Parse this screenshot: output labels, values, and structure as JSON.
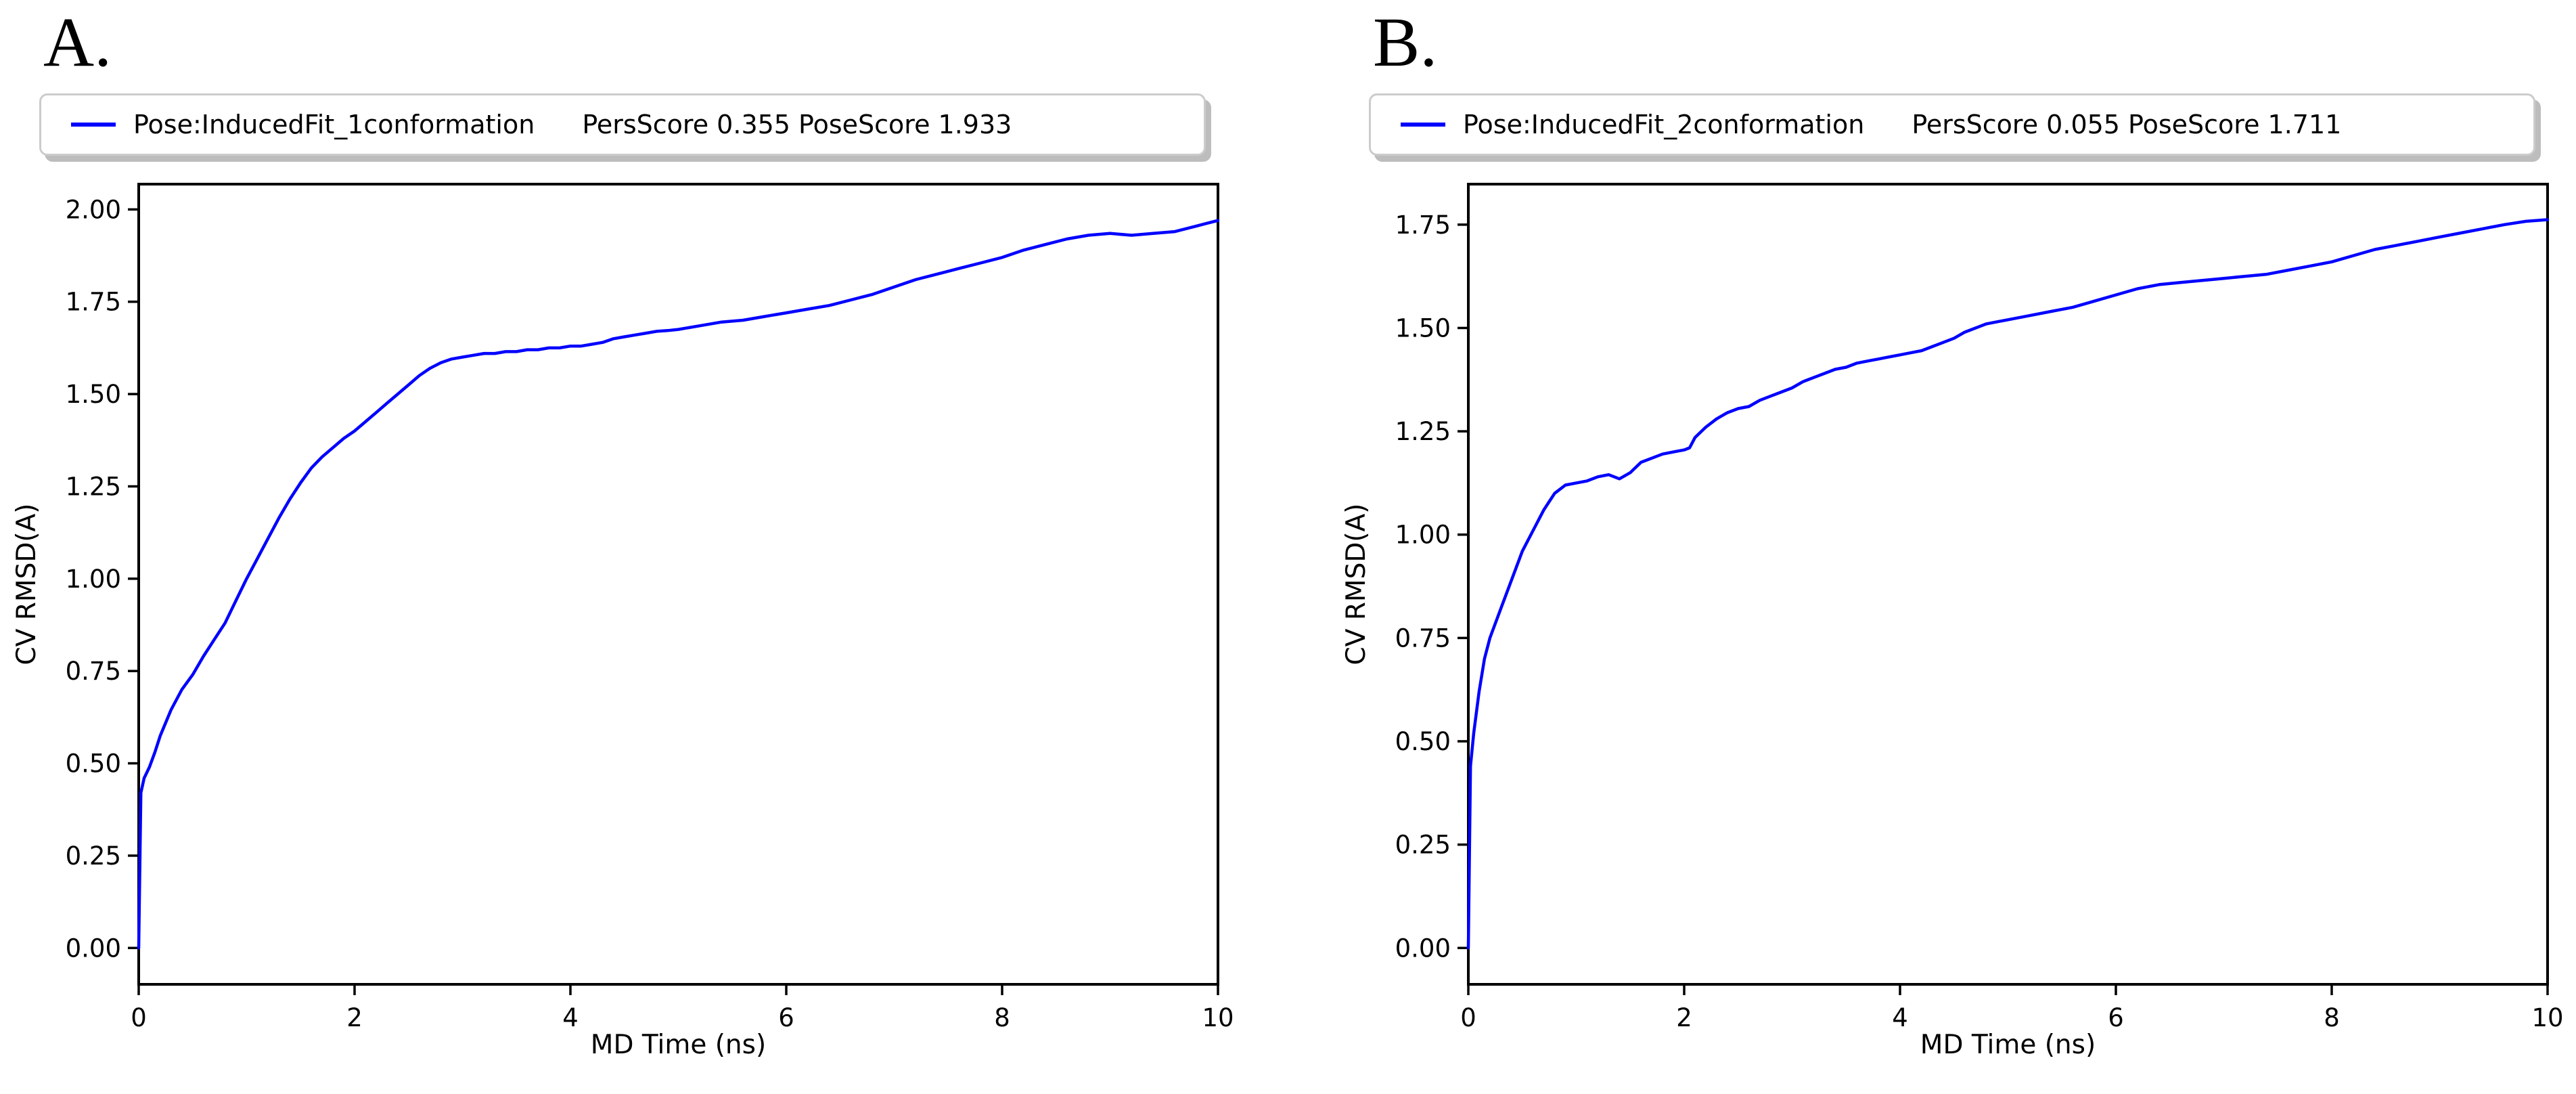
{
  "figure": {
    "background": "#ffffff"
  },
  "colors": {
    "line": "#0000ff",
    "axis": "#000000",
    "text": "#000000",
    "legend_border": "#cccccc",
    "legend_shadow": "#bdbdbd",
    "background": "#ffffff"
  },
  "panels": [
    {
      "letter": "A.",
      "legend": {
        "series_label": "Pose:InducedFit_1conformation",
        "scores_label": "PersScore 0.355 PoseScore 1.933"
      }
    },
    {
      "letter": "B.",
      "legend": {
        "series_label": "Pose:InducedFit_2conformation",
        "scores_label": "PersScore 0.055 PoseScore 1.711"
      }
    }
  ],
  "chart_data": [
    {
      "type": "line",
      "title": "A.",
      "xlabel": "MD Time (ns)",
      "ylabel": "CV RMSD(A)",
      "xlim": [
        0,
        10
      ],
      "ylim": [
        -0.0985,
        2.0685
      ],
      "xticks": [
        0,
        2,
        4,
        6,
        8,
        10
      ],
      "xtick_labels": [
        "0",
        "2",
        "4",
        "6",
        "8",
        "10"
      ],
      "yticks": [
        0.0,
        0.25,
        0.5,
        0.75,
        1.0,
        1.25,
        1.5,
        1.75,
        2.0
      ],
      "ytick_labels": [
        "0.00",
        "0.25",
        "0.50",
        "0.75",
        "1.00",
        "1.25",
        "1.50",
        "1.75",
        "2.00"
      ],
      "grid": false,
      "legend_position": "above-plot",
      "pers_score": 0.355,
      "pose_score": 1.933,
      "series": [
        {
          "name": "Pose:InducedFit_1conformation",
          "x": [
            0,
            0.02,
            0.05,
            0.1,
            0.15,
            0.2,
            0.3,
            0.4,
            0.5,
            0.6,
            0.7,
            0.8,
            0.9,
            1,
            1.1,
            1.2,
            1.3,
            1.4,
            1.5,
            1.6,
            1.7,
            1.8,
            1.9,
            2,
            2.1,
            2.2,
            2.3,
            2.4,
            2.5,
            2.6,
            2.7,
            2.8,
            2.9,
            3,
            3.1,
            3.2,
            3.3,
            3.4,
            3.5,
            3.6,
            3.7,
            3.8,
            3.9,
            4,
            4.1,
            4.2,
            4.3,
            4.4,
            4.5,
            4.6,
            4.7,
            4.8,
            4.9,
            5,
            5.2,
            5.4,
            5.6,
            5.8,
            6,
            6.2,
            6.4,
            6.6,
            6.8,
            7,
            7.2,
            7.4,
            7.6,
            7.8,
            8,
            8.2,
            8.4,
            8.6,
            8.8,
            9,
            9.2,
            9.4,
            9.6,
            9.8,
            10
          ],
          "y": [
            0,
            0.42,
            0.46,
            0.49,
            0.53,
            0.575,
            0.645,
            0.7,
            0.74,
            0.79,
            0.835,
            0.88,
            0.94,
            1.0,
            1.055,
            1.11,
            1.165,
            1.215,
            1.26,
            1.3,
            1.33,
            1.355,
            1.38,
            1.4,
            1.425,
            1.45,
            1.475,
            1.5,
            1.525,
            1.55,
            1.57,
            1.585,
            1.595,
            1.6,
            1.605,
            1.61,
            1.61,
            1.615,
            1.615,
            1.62,
            1.62,
            1.625,
            1.625,
            1.63,
            1.63,
            1.635,
            1.64,
            1.65,
            1.655,
            1.66,
            1.665,
            1.67,
            1.672,
            1.675,
            1.685,
            1.695,
            1.7,
            1.71,
            1.72,
            1.73,
            1.74,
            1.755,
            1.77,
            1.79,
            1.81,
            1.825,
            1.84,
            1.855,
            1.87,
            1.89,
            1.905,
            1.92,
            1.93,
            1.935,
            1.93,
            1.935,
            1.94,
            1.955,
            1.97
          ]
        }
      ]
    },
    {
      "type": "line",
      "title": "B.",
      "xlabel": "MD Time (ns)",
      "ylabel": "CV RMSD(A)",
      "xlim": [
        0,
        10
      ],
      "ylim": [
        -0.088,
        1.848
      ],
      "xticks": [
        0,
        2,
        4,
        6,
        8,
        10
      ],
      "xtick_labels": [
        "0",
        "2",
        "4",
        "6",
        "8",
        "10"
      ],
      "yticks": [
        0.0,
        0.25,
        0.5,
        0.75,
        1.0,
        1.25,
        1.5,
        1.75
      ],
      "ytick_labels": [
        "0.00",
        "0.25",
        "0.50",
        "0.75",
        "1.00",
        "1.25",
        "1.50",
        "1.75"
      ],
      "grid": false,
      "legend_position": "above-plot",
      "pers_score": 0.055,
      "pose_score": 1.711,
      "series": [
        {
          "name": "Pose:InducedFit_2conformation",
          "x": [
            0,
            0.02,
            0.05,
            0.1,
            0.15,
            0.2,
            0.3,
            0.4,
            0.5,
            0.6,
            0.7,
            0.8,
            0.9,
            1,
            1.1,
            1.2,
            1.3,
            1.4,
            1.5,
            1.6,
            1.7,
            1.8,
            1.9,
            2,
            2.05,
            2.1,
            2.2,
            2.3,
            2.4,
            2.5,
            2.6,
            2.7,
            2.8,
            2.9,
            3,
            3.1,
            3.2,
            3.3,
            3.4,
            3.5,
            3.6,
            3.7,
            3.8,
            3.9,
            4,
            4.1,
            4.2,
            4.3,
            4.4,
            4.5,
            4.6,
            4.7,
            4.8,
            4.9,
            5,
            5.2,
            5.4,
            5.6,
            5.8,
            6,
            6.2,
            6.4,
            6.6,
            6.8,
            7,
            7.2,
            7.4,
            7.6,
            7.8,
            8,
            8.2,
            8.4,
            8.6,
            8.8,
            9,
            9.2,
            9.4,
            9.6,
            9.8,
            10
          ],
          "y": [
            0,
            0.44,
            0.52,
            0.62,
            0.7,
            0.75,
            0.82,
            0.89,
            0.96,
            1.01,
            1.06,
            1.1,
            1.12,
            1.125,
            1.13,
            1.14,
            1.145,
            1.135,
            1.15,
            1.175,
            1.185,
            1.195,
            1.2,
            1.205,
            1.21,
            1.235,
            1.26,
            1.28,
            1.295,
            1.305,
            1.31,
            1.325,
            1.335,
            1.345,
            1.355,
            1.37,
            1.38,
            1.39,
            1.4,
            1.405,
            1.415,
            1.42,
            1.425,
            1.43,
            1.435,
            1.44,
            1.445,
            1.455,
            1.465,
            1.475,
            1.49,
            1.5,
            1.51,
            1.515,
            1.52,
            1.53,
            1.54,
            1.55,
            1.565,
            1.58,
            1.595,
            1.605,
            1.61,
            1.615,
            1.62,
            1.625,
            1.63,
            1.64,
            1.65,
            1.66,
            1.675,
            1.69,
            1.7,
            1.71,
            1.72,
            1.73,
            1.74,
            1.75,
            1.758,
            1.762
          ]
        }
      ]
    }
  ]
}
